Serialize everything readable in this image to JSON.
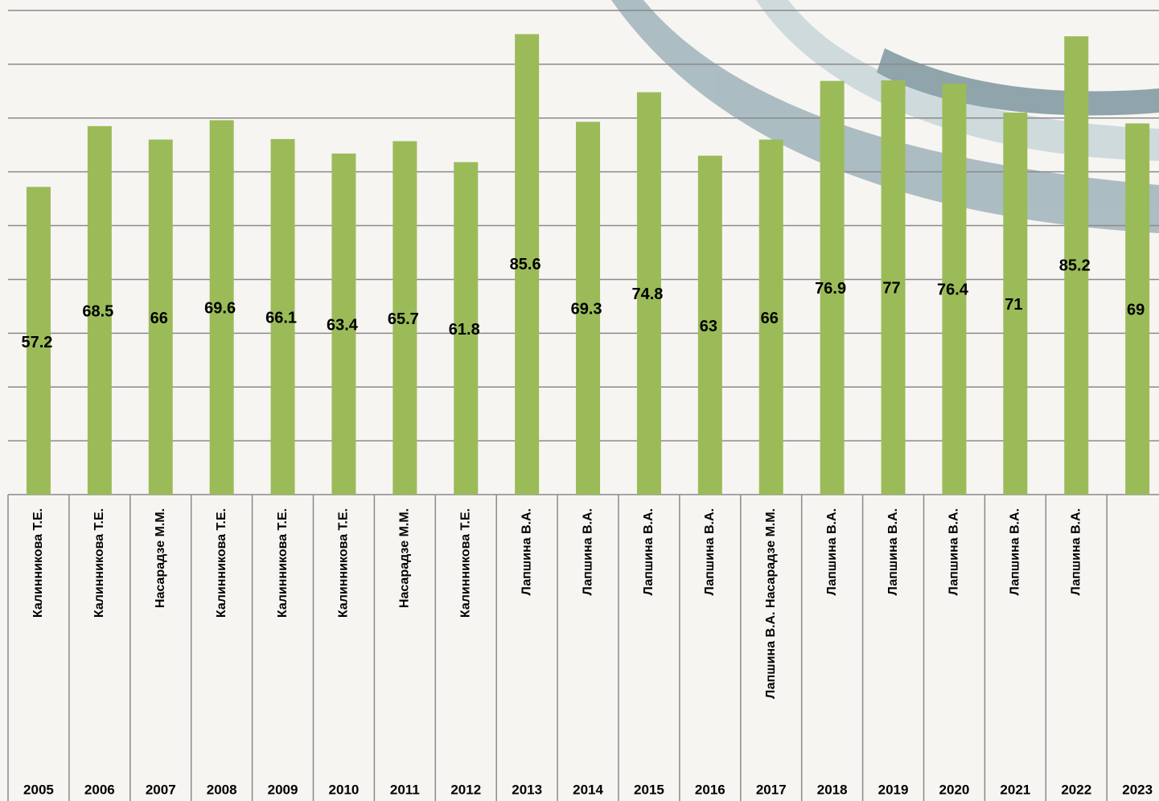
{
  "chart_data": {
    "type": "bar",
    "categories": [
      "2005",
      "2006",
      "2007",
      "2008",
      "2009",
      "2010",
      "2011",
      "2012",
      "2013",
      "2014",
      "2015",
      "2016",
      "2017",
      "2018",
      "2019",
      "2020",
      "2021",
      "2022",
      "2023"
    ],
    "names": [
      "Калинникова Т.Е.",
      "Калинникова Т.Е.",
      "Насарадзе М.М.",
      "Калинникова Т.Е.",
      "Калинникова Т.Е.",
      "Калинникова Т.Е.",
      "Насарадзе М.М.",
      "Калинникова Т.Е.",
      "Лапшина В.А.",
      "Лапшина В.А.",
      "Лапшина В.А.",
      "Лапшина В.А.",
      "Лапшина В.А. Насарадзе М.М.",
      "Лапшина В.А.",
      "Лапшина В.А.",
      "Лапшина В.А.",
      "Лапшина В.А.",
      "Лапшина В.А.",
      null
    ],
    "values": [
      57.2,
      68.5,
      66,
      69.6,
      66.1,
      63.4,
      65.7,
      61.8,
      85.6,
      69.3,
      74.8,
      63,
      66,
      76.9,
      77,
      76.4,
      71,
      85.2,
      69
    ],
    "color": "#9bbb59",
    "ylim": [
      0,
      90
    ],
    "yticks": [
      0,
      10,
      20,
      30,
      40,
      50,
      60,
      70,
      80,
      90
    ],
    "grid": true
  }
}
